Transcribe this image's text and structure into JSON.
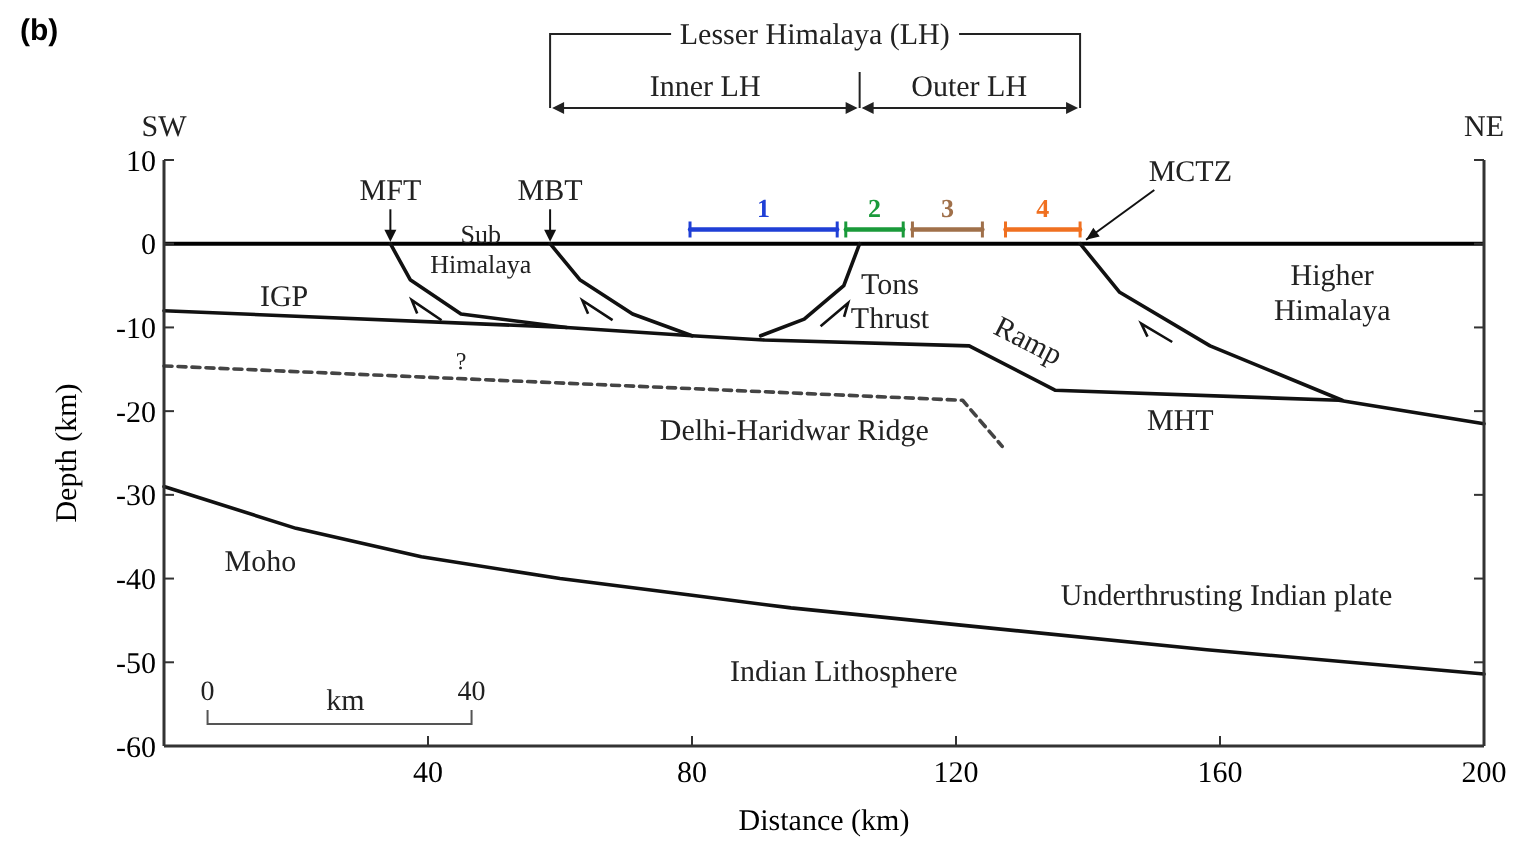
{
  "chart_data": {
    "type": "line",
    "xlabel": "Distance (km)",
    "ylabel": "Depth (km)",
    "xlim": [
      0,
      200
    ],
    "xticks": [
      40,
      80,
      120,
      160,
      200
    ],
    "ylim": [
      -60,
      10
    ],
    "yticks": [
      10,
      0,
      -10,
      -20,
      -30,
      -40,
      -50,
      -60
    ],
    "grid": false,
    "line_style": "solid",
    "marker": "none",
    "ref_lines": [
      {
        "axis": "y",
        "value": 0,
        "color": "#000000"
      }
    ],
    "series": [
      {
        "color": "#111111",
        "x": [
          0,
          61,
          80,
          91,
          122,
          135,
          178,
          200
        ],
        "values": [
          -8,
          -10,
          -11,
          -11.5,
          -12.2,
          -17.5,
          -18.7,
          -21.5
        ]
      },
      {
        "color": "#111111",
        "x": [
          34.3,
          37.3,
          45,
          61
        ],
        "values": [
          0,
          -4.3,
          -8.4,
          -10
        ]
      },
      {
        "color": "#111111",
        "x": [
          58.5,
          63,
          71,
          80
        ],
        "values": [
          0,
          -4.3,
          -8.4,
          -11
        ]
      },
      {
        "color": "#111111",
        "x": [
          105.4,
          103,
          97,
          90.4
        ],
        "values": [
          0,
          -5,
          -9,
          -11
        ]
      },
      {
        "color": "#111111",
        "x": [
          138.8,
          144.8,
          158.5,
          178.5
        ],
        "values": [
          0,
          -5.8,
          -12.2,
          -18.7
        ]
      },
      {
        "color": "#444444",
        "line_style": "dashed",
        "x": [
          0,
          121,
          127
        ],
        "values": [
          -14.6,
          -18.7,
          -24.2
        ]
      },
      {
        "color": "#111111",
        "x": [
          0,
          20,
          39,
          60,
          80,
          95,
          120,
          158,
          200
        ],
        "values": [
          -29,
          -34,
          -37.4,
          -40,
          -42,
          -43.5,
          -45.5,
          -48.5,
          -51.4
        ]
      },
      {
        "name": "1",
        "color": "#1f3fd6",
        "x": [
          79.7,
          102
        ],
        "values": [
          1.7,
          1.7
        ]
      },
      {
        "name": "2",
        "color": "#1a9a3a",
        "x": [
          103.3,
          112
        ],
        "values": [
          1.7,
          1.7
        ]
      },
      {
        "name": "3",
        "color": "#a0704a",
        "x": [
          113.4,
          124
        ],
        "values": [
          1.7,
          1.7
        ]
      },
      {
        "name": "4",
        "color": "#f07020",
        "x": [
          127.5,
          138.8
        ],
        "values": [
          1.7,
          1.7
        ]
      }
    ],
    "annotations": [
      "Lesser Himalaya (LH)",
      "Inner LH",
      "Outer LH",
      "SW",
      "NE",
      "(b)",
      "MFT",
      "MBT",
      "MCTZ",
      "Sub Himalaya",
      "IGP",
      "Tons Thrust",
      "Higher Himalaya",
      "Ramp",
      "MHT",
      "Delhi-Haridwar Ridge",
      "?",
      "Moho",
      "Underthrusting Indian plate",
      "Indian Lithosphere",
      "0",
      "km",
      "40"
    ]
  }
}
